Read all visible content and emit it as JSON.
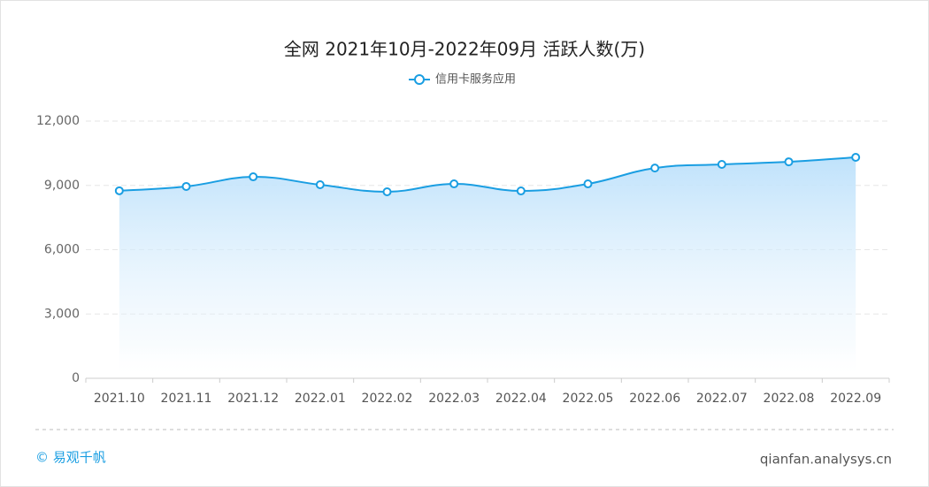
{
  "chart_data": {
    "type": "line",
    "title": "全网 2021年10月-2022年09月 活跃人数(万)",
    "categories": [
      "2021.10",
      "2021.11",
      "2021.12",
      "2022.01",
      "2022.02",
      "2022.03",
      "2022.04",
      "2022.05",
      "2022.06",
      "2022.07",
      "2022.08",
      "2022.09"
    ],
    "series": [
      {
        "name": "信用卡服务应用",
        "color": "#1a9ee2",
        "values": [
          8750,
          8950,
          9400,
          9030,
          8700,
          9070,
          8740,
          9070,
          9810,
          9980,
          10100,
          10310
        ]
      }
    ],
    "ylim": [
      0,
      12000
    ],
    "yticks": [
      0,
      {
        "value": 3000,
        "label": "3,000"
      },
      {
        "value": 6000,
        "label": "6,000"
      },
      {
        "value": 9000,
        "label": "9,000"
      },
      {
        "value": 12000,
        "label": "12,000"
      }
    ],
    "grid": true,
    "legend": "top"
  },
  "footer": {
    "copyright": "© 易观千帆",
    "source": "qianfan.analysys.cn"
  }
}
